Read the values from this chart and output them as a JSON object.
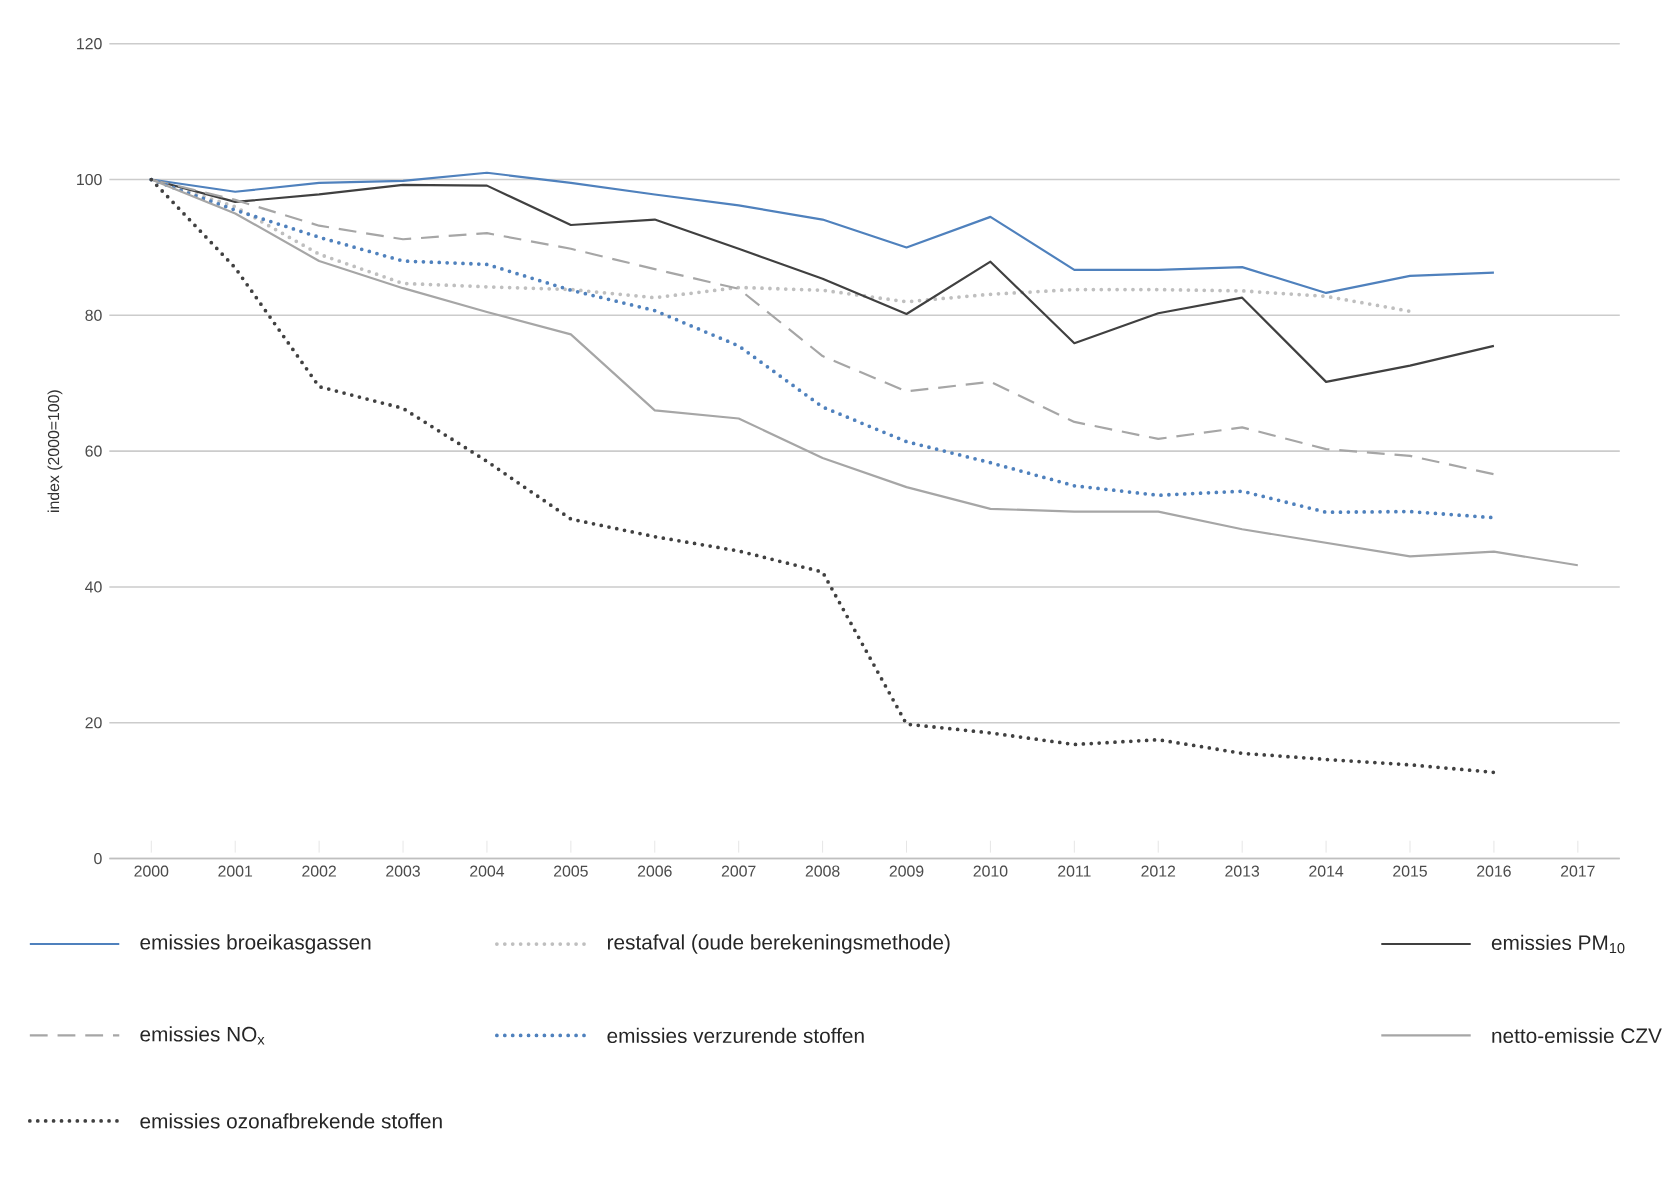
{
  "chart_data": {
    "type": "line",
    "ylabel": "index (2000=100)",
    "categories": [
      "2000",
      "2001",
      "2002",
      "2003",
      "2004",
      "2005",
      "2006",
      "2007",
      "2008",
      "2009",
      "2010",
      "2011",
      "2012",
      "2013",
      "2014",
      "2015",
      "2016",
      "2017"
    ],
    "ylim": [
      0,
      120
    ],
    "yticks": [
      0,
      20,
      40,
      60,
      80,
      100,
      120
    ],
    "grid": "y",
    "legend": "bottom",
    "series": [
      {
        "name": "emissies broeikasgassen",
        "color": "#4f81bd",
        "line_style": "solid",
        "values": [
          100,
          98.2,
          99.5,
          99.8,
          101,
          99.5,
          97.8,
          96.2,
          94.1,
          90,
          94.5,
          86.7,
          86.7,
          87.1,
          83.3,
          85.8,
          86.3,
          null
        ]
      },
      {
        "name": "restafval (oude berekeningsmethode)",
        "color": "#bfbfbf",
        "line_style": "dotted",
        "values": [
          100,
          96,
          89,
          84.7,
          84.2,
          83.8,
          82.6,
          84.1,
          83.7,
          82,
          83.1,
          83.8,
          83.8,
          83.6,
          82.8,
          80.6,
          null,
          null
        ]
      },
      {
        "name": "emissies PM$_{10}$",
        "color": "#404040",
        "line_style": "solid",
        "values": [
          100,
          96.7,
          97.8,
          99.2,
          99.1,
          93.3,
          94.1,
          89.8,
          85.4,
          80.2,
          87.9,
          75.9,
          80.3,
          82.6,
          70.2,
          72.6,
          75.5,
          null
        ]
      },
      {
        "name": "emissies NO$_{x}$",
        "color": "#a6a6a6",
        "line_style": "dashed",
        "values": [
          100,
          97,
          93.2,
          91.2,
          92.1,
          89.8,
          86.8,
          83.9,
          74,
          68.8,
          70.2,
          64.3,
          61.8,
          63.5,
          60.3,
          59.3,
          56.6,
          null
        ]
      },
      {
        "name": "emissies verzurende stoffen",
        "color": "#4f81bd",
        "line_style": "dotted",
        "values": [
          100,
          95.5,
          91.5,
          88,
          87.5,
          83.7,
          80.7,
          75.5,
          66.5,
          61.4,
          58.3,
          54.9,
          53.5,
          54.1,
          51,
          51.1,
          50.2,
          null
        ]
      },
      {
        "name": "netto-emissie CZV",
        "color": "#a6a6a6",
        "line_style": "solid",
        "values": [
          100,
          95,
          88,
          84,
          80.5,
          77.2,
          66,
          64.8,
          59,
          54.7,
          51.5,
          51.1,
          51.1,
          48.5,
          46.5,
          44.5,
          45.2,
          43.2
        ]
      },
      {
        "name": "emissies ozonafbrekende stoffen",
        "color": "#404040",
        "line_style": "dotted",
        "values": [
          100,
          87,
          69.5,
          66.3,
          58.5,
          50,
          47.4,
          45.3,
          42.2,
          19.8,
          18.5,
          16.8,
          17.5,
          15.5,
          14.6,
          13.8,
          12.7,
          null
        ]
      }
    ]
  }
}
